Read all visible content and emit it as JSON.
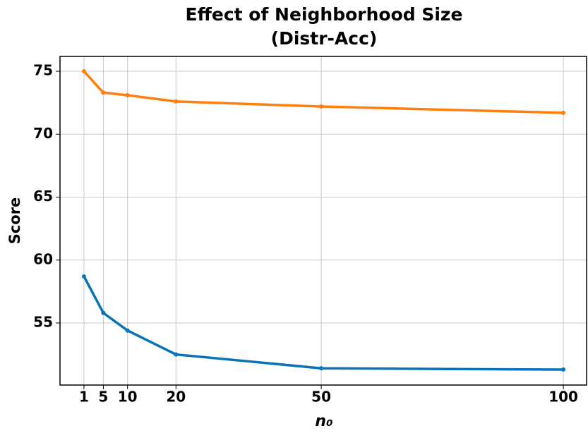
{
  "chart_data": {
    "type": "line",
    "title": [
      "Effect of Neighborhood Size",
      "(Distr-Acc)"
    ],
    "x_label": "n₀",
    "y_label": "Score",
    "x": [
      1,
      5,
      10,
      20,
      50,
      100
    ],
    "series": [
      {
        "color": "#ff7f0e",
        "values": [
          75.0,
          73.3,
          73.1,
          72.6,
          72.2,
          71.7
        ]
      },
      {
        "color": "#0a72b8",
        "values": [
          58.7,
          55.8,
          54.4,
          52.5,
          51.4,
          51.3
        ]
      }
    ],
    "xlim": [
      -3.95,
      104.8
    ],
    "ylim": [
      50.07,
      76.18
    ],
    "xticks": [
      1,
      5,
      10,
      20,
      50,
      100
    ],
    "yticks": [
      55,
      60,
      65,
      70,
      75
    ],
    "grid": true
  }
}
